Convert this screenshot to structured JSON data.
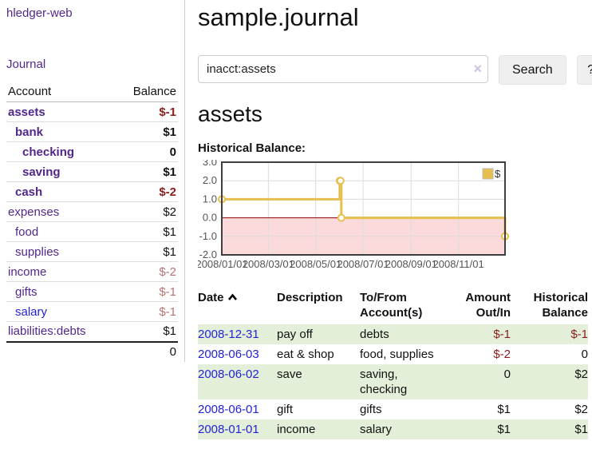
{
  "sidebar": {
    "app_title": "hledger-web",
    "nav": [
      {
        "label": "Journal"
      }
    ],
    "accounts_table": {
      "headers": {
        "account": "Account",
        "balance": "Balance"
      },
      "rows": [
        {
          "account": "assets",
          "balance": "$-1",
          "depth": 1,
          "bold": true,
          "balance_style": "neg-strong"
        },
        {
          "account": "bank",
          "balance": "$1",
          "depth": 2,
          "bold": true,
          "balance_style": ""
        },
        {
          "account": "checking",
          "balance": "0",
          "depth": 3,
          "bold": true,
          "balance_style": ""
        },
        {
          "account": "saving",
          "balance": "$1",
          "depth": 3,
          "bold": true,
          "balance_style": ""
        },
        {
          "account": "cash",
          "balance": "$-2",
          "depth": 2,
          "bold": true,
          "balance_style": "neg-strong"
        },
        {
          "account": "expenses",
          "balance": "$2",
          "depth": 1,
          "bold": false,
          "balance_style": ""
        },
        {
          "account": "food",
          "balance": "$1",
          "depth": 2,
          "bold": false,
          "balance_style": ""
        },
        {
          "account": "supplies",
          "balance": "$1",
          "depth": 2,
          "bold": false,
          "balance_style": ""
        },
        {
          "account": "income",
          "balance": "$-2",
          "depth": 1,
          "bold": false,
          "balance_style": "neg-soft"
        },
        {
          "account": "gifts",
          "balance": "$-1",
          "depth": 2,
          "bold": false,
          "balance_style": "neg-soft"
        },
        {
          "account": "salary",
          "balance": "$-1",
          "depth": 2,
          "bold": false,
          "balance_style": "neg-soft",
          "link_style": "blue"
        },
        {
          "account": "liabilities:debts",
          "balance": "$1",
          "depth": 1,
          "bold": false,
          "balance_style": ""
        }
      ],
      "total": "0"
    }
  },
  "main": {
    "title": "sample.journal",
    "search": {
      "value": "inacct:assets",
      "clear_icon": "×",
      "button_label": "Search",
      "help_label": "?"
    },
    "account_heading": "assets",
    "chart_label": "Historical Balance:"
  },
  "chart_data": {
    "type": "line",
    "step": true,
    "series": [
      {
        "name": "$",
        "color": "#e6bf4e",
        "points": [
          [
            "2008-01-01",
            1
          ],
          [
            "2008-06-01",
            2
          ],
          [
            "2008-06-02",
            2
          ],
          [
            "2008-06-03",
            0
          ],
          [
            "2008-12-31",
            -1
          ]
        ]
      }
    ],
    "x_domain": [
      "2008-01-01",
      "2008-12-31"
    ],
    "ylim": [
      -2,
      3
    ],
    "yticks": [
      3,
      2,
      1,
      0,
      -1,
      -2
    ],
    "xticks": [
      "2008/01/01",
      "2008/03/01",
      "2008/05/01",
      "2008/07/01",
      "2008/09/01",
      "2008/11/01"
    ],
    "legend": {
      "label": "$",
      "position": "top-right"
    },
    "grid": true,
    "negative_region_color": "#fadadb",
    "zero_line_color": "#8b0000",
    "tick_color": "#545454",
    "grid_color": "#dcdcdc",
    "border_color": "#3f3f3f"
  },
  "transactions": {
    "headers": {
      "date": "Date",
      "sort_icon": "chevron-up",
      "description": "Description",
      "accounts": "To/From Account(s)",
      "amount": "Amount Out/In",
      "balance": "Historical Balance"
    },
    "rows": [
      {
        "date": "2008-12-31",
        "description": "pay off",
        "accounts": "debts",
        "amount": "$-1",
        "balance": "$-1"
      },
      {
        "date": "2008-06-03",
        "description": "eat & shop",
        "accounts": "food, supplies",
        "amount": "$-2",
        "balance": "0"
      },
      {
        "date": "2008-06-02",
        "description": "save",
        "accounts": "saving, checking",
        "amount": "0",
        "balance": "$2"
      },
      {
        "date": "2008-06-01",
        "description": "gift",
        "accounts": "gifts",
        "amount": "$1",
        "balance": "$2"
      },
      {
        "date": "2008-01-01",
        "description": "income",
        "accounts": "salary",
        "amount": "$1",
        "balance": "$1"
      }
    ]
  }
}
